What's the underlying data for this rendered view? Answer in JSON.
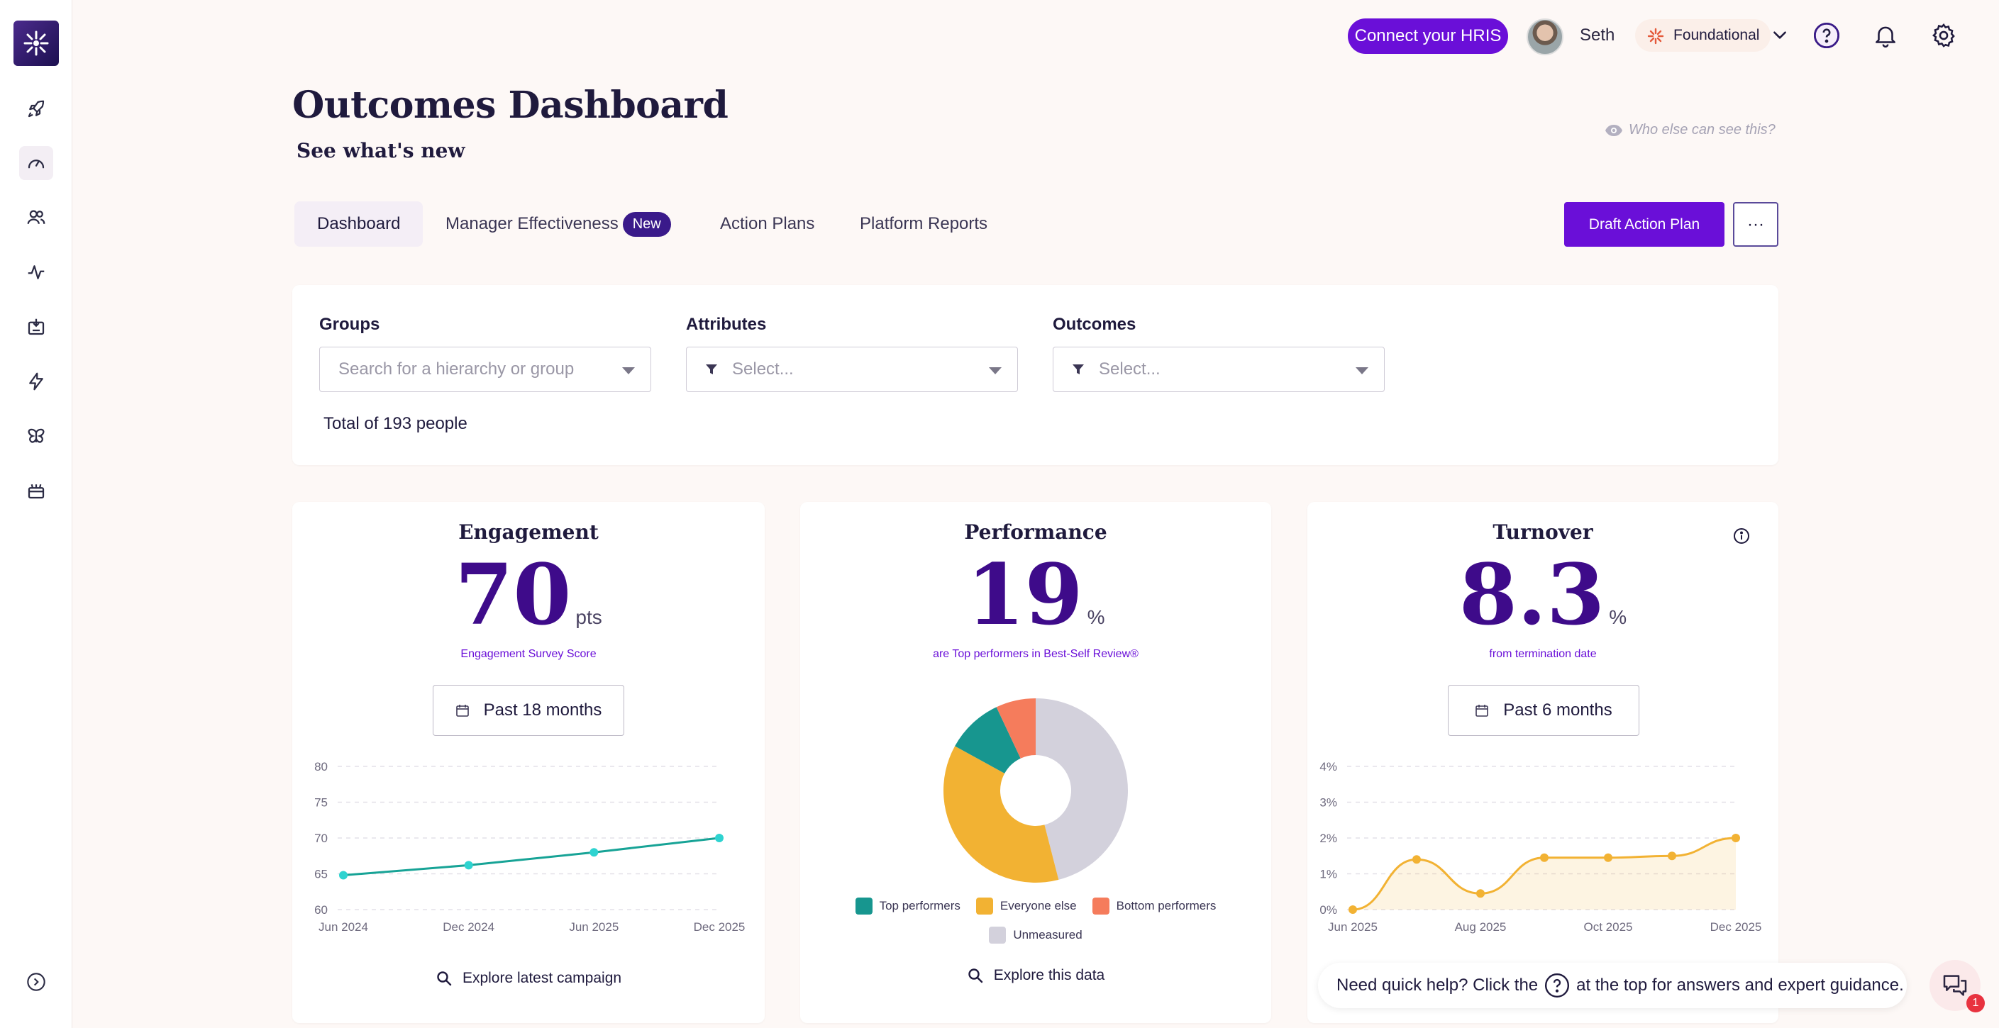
{
  "topbar": {
    "hris_label": "Connect your HRIS",
    "username": "Seth",
    "plan_label": "Foundational"
  },
  "header": {
    "title": "Outcomes Dashboard",
    "subtitle": "See what's new",
    "visibility_link": "Who else can see this?"
  },
  "tabs": [
    {
      "label": "Dashboard",
      "active": true
    },
    {
      "label": "Manager Effectiveness",
      "badge": "New"
    },
    {
      "label": "Action Plans"
    },
    {
      "label": "Platform Reports"
    }
  ],
  "actions": {
    "draft_label": "Draft Action Plan",
    "more_label": "···"
  },
  "filters": {
    "groups_label": "Groups",
    "groups_placeholder": "Search for a hierarchy or group",
    "attributes_label": "Attributes",
    "attributes_placeholder": "Select...",
    "outcomes_label": "Outcomes",
    "outcomes_placeholder": "Select...",
    "total": "Total of 193 people"
  },
  "engagement": {
    "title": "Engagement",
    "value": "70",
    "unit": "pts",
    "caption": "Engagement Survey Score",
    "range": "Past 18 months",
    "explore": "Explore latest campaign"
  },
  "performance": {
    "title": "Performance",
    "value": "19",
    "unit": "%",
    "caption": "are Top performers in Best-Self Review®",
    "explore": "Explore this data"
  },
  "turnover": {
    "title": "Turnover",
    "value": "8.3",
    "unit": "%",
    "caption": "from termination date",
    "range": "Past 6 months"
  },
  "help": {
    "text_before": "Need quick help? Click the",
    "text_after": "at the top for answers and expert guidance.",
    "chat_count": "1"
  },
  "colors": {
    "accent": "#6a0fd8",
    "engagement_line": "#17a396",
    "engagement_point": "#2ed3d0",
    "turnover_line": "#f2b233",
    "top": "#17968f",
    "everyone": "#f2b233",
    "bottom": "#f57c5c",
    "unmeasured": "#d3d1dc"
  },
  "chart_data": [
    {
      "type": "line",
      "x": [
        "Jun 2024",
        "Dec 2024",
        "Jun 2025",
        "Dec 2025"
      ],
      "series": [
        {
          "values": [
            64.8,
            66.2,
            68.0,
            70.0
          ]
        }
      ],
      "yticks": [
        "80",
        "75",
        "70",
        "65",
        "60"
      ],
      "ylim": [
        60,
        80
      ],
      "grid": true
    },
    {
      "type": "pie",
      "donut": true,
      "labels": [
        "Top performers",
        "Everyone else",
        "Bottom performers",
        "Unmeasured"
      ],
      "values": [
        10,
        37,
        7,
        46
      ]
    },
    {
      "type": "area",
      "x": [
        "Jun 2025",
        "Jul 2025",
        "Aug 2025",
        "Sep 2025",
        "Oct 2025",
        "Nov 2025",
        "Dec 2025"
      ],
      "xticks": [
        "Jun 2025",
        "Aug 2025",
        "Oct 2025",
        "Dec 2025"
      ],
      "series": [
        {
          "values": [
            0.0,
            1.4,
            0.45,
            1.45,
            1.45,
            1.5,
            2.0
          ]
        }
      ],
      "yticks": [
        "4%",
        "3%",
        "2%",
        "1%",
        "0%"
      ],
      "ylim": [
        0,
        4
      ],
      "grid": true
    }
  ]
}
